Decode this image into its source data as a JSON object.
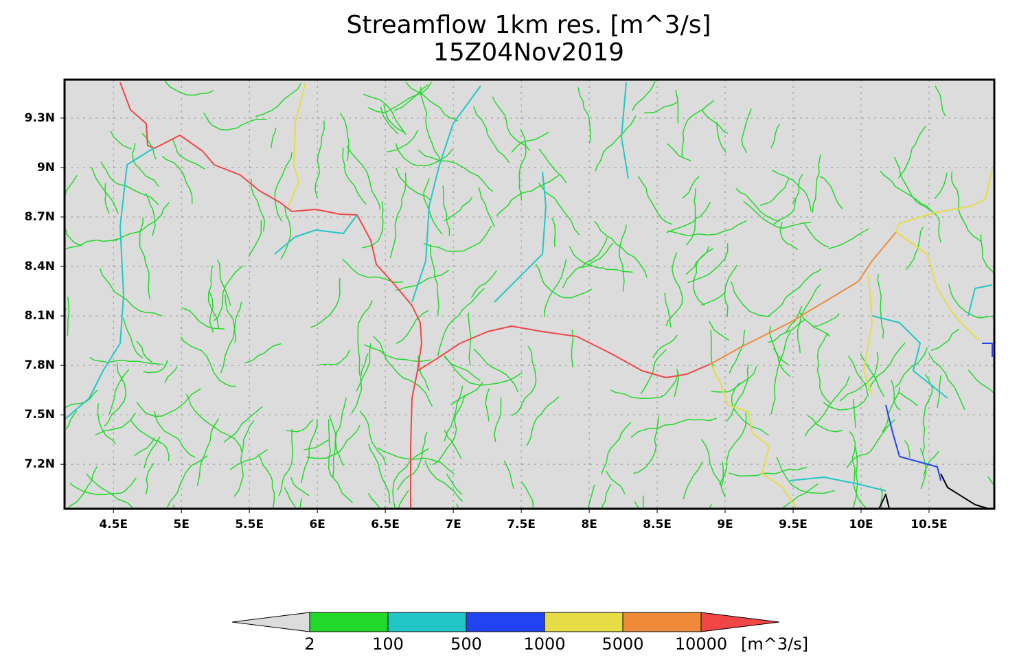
{
  "header": {
    "title": "Streamflow 1km res. [m^3/s]",
    "subtitle": "15Z04Nov2019"
  },
  "map": {
    "xlim": [
      4.14,
      10.98
    ],
    "ylim": [
      6.93,
      9.533
    ],
    "xticks": [
      {
        "value": 4.5,
        "label": "4.5E"
      },
      {
        "value": 5,
        "label": "5E"
      },
      {
        "value": 5.5,
        "label": "5.5E"
      },
      {
        "value": 6,
        "label": "6E"
      },
      {
        "value": 6.5,
        "label": "6.5E"
      },
      {
        "value": 7,
        "label": "7E"
      },
      {
        "value": 7.5,
        "label": "7.5E"
      },
      {
        "value": 8,
        "label": "8E"
      },
      {
        "value": 8.5,
        "label": "8.5E"
      },
      {
        "value": 9,
        "label": "9E"
      },
      {
        "value": 9.5,
        "label": "9.5E"
      },
      {
        "value": 10,
        "label": "10E"
      },
      {
        "value": 10.5,
        "label": "10.5E"
      }
    ],
    "yticks": [
      {
        "value": 9.3,
        "label": "9.3N"
      },
      {
        "value": 9,
        "label": "9N"
      },
      {
        "value": 8.7,
        "label": "8.7N"
      },
      {
        "value": 8.4,
        "label": "8.4N"
      },
      {
        "value": 8.1,
        "label": "8.1N"
      },
      {
        "value": 7.8,
        "label": "7.8N"
      },
      {
        "value": 7.5,
        "label": "7.5N"
      },
      {
        "value": 7.2,
        "label": "7.2N"
      }
    ],
    "grid": true
  },
  "colorbar": {
    "levels": [
      2,
      100,
      500,
      1000,
      5000,
      10000
    ],
    "unit": "[m^3/s]",
    "colors": [
      "#dcdcdc",
      "#22d82a",
      "#22c6c6",
      "#2244f0",
      "#e6dc46",
      "#ee8a3a",
      "#f04646"
    ]
  }
}
